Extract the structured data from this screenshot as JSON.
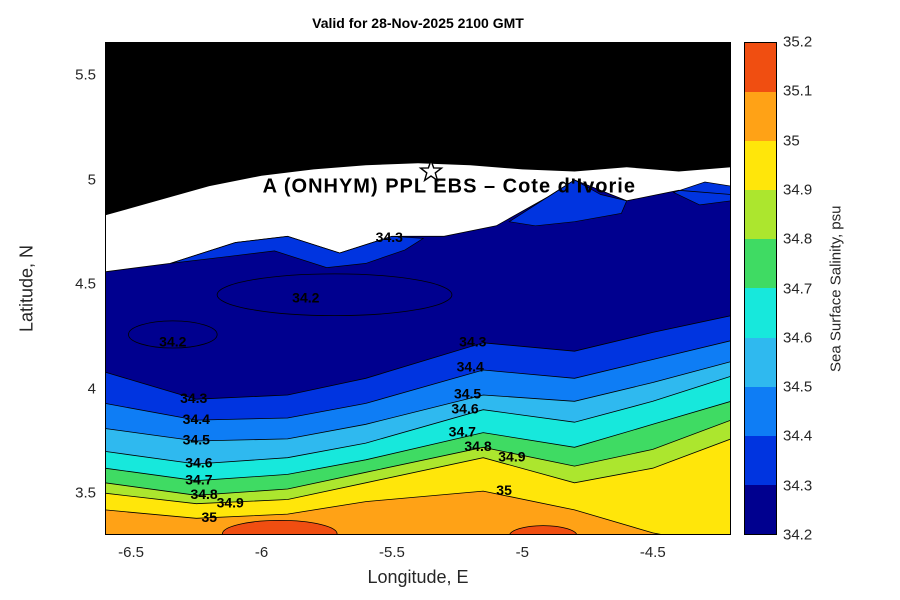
{
  "figure": {
    "title": "Valid for 28-Nov-2025 2100 GMT",
    "x_label": "Longitude, E",
    "y_label": "Latitude, N"
  },
  "colorbar": {
    "label": "Sea Surface Salinity, psu",
    "tick_labels": [
      "35.2",
      "35.1",
      "35",
      "34.9",
      "34.8",
      "34.7",
      "34.6",
      "34.5",
      "34.4",
      "34.3",
      "34.2"
    ],
    "segment_colors_top_to_bottom": [
      "#F04E11",
      "#FFA216",
      "#FFE60A",
      "#ACE62E",
      "#3FDB63",
      "#17E8DC",
      "#2FB9EF",
      "#0E7DF5",
      "#0034E0",
      "#00008F"
    ]
  },
  "annotation": {
    "text": "A (ONHYM) PPL EBS – Cote d'Ivorie",
    "lon": -5.28,
    "lat": 4.965
  },
  "star_marker": {
    "lon": -5.35,
    "lat": 5.04
  },
  "chart_data": {
    "type": "filled-contour",
    "title": "Valid for 28-Nov-2025 2100 GMT",
    "xlabel": "Longitude, E",
    "ylabel": "Latitude, N",
    "colorbar_label": "Sea Surface Salinity, psu",
    "xlim": [
      -6.6,
      -4.2
    ],
    "ylim": [
      3.3,
      5.66
    ],
    "x_tick_values": [
      -6.5,
      -6,
      -5.5,
      -5,
      -4.5
    ],
    "x_tick_labels": [
      "-6.5",
      "-6",
      "-5.5",
      "-5",
      "-4.5"
    ],
    "y_tick_values": [
      5.5,
      5,
      4.5,
      4,
      3.5
    ],
    "y_tick_labels": [
      "5.5",
      "5",
      "4.5",
      "4",
      "3.5"
    ],
    "levels": [
      34.2,
      34.3,
      34.4,
      34.5,
      34.6,
      34.7,
      34.8,
      34.9,
      35,
      35.1,
      35.2
    ],
    "band_colors_low_to_high": [
      "#00008F",
      "#0034E0",
      "#0E7DF5",
      "#2FB9EF",
      "#17E8DC",
      "#3FDB63",
      "#ACE62E",
      "#FFE60A",
      "#FFA216",
      "#F04E11"
    ],
    "x_stations": [
      -6.6,
      -6.25,
      -5.9,
      -5.6,
      -5.15,
      -4.8,
      -4.5,
      -4.2
    ],
    "contours": [
      {
        "level": "34.3",
        "lats": [
          4.08,
          3.95,
          3.97,
          4.05,
          4.22,
          4.18,
          4.27,
          4.35
        ]
      },
      {
        "level": "34.4",
        "lats": [
          3.93,
          3.85,
          3.86,
          3.93,
          4.09,
          4.05,
          4.14,
          4.23
        ]
      },
      {
        "level": "34.5",
        "lats": [
          3.81,
          3.75,
          3.76,
          3.83,
          3.97,
          3.94,
          4.03,
          4.13
        ]
      },
      {
        "level": "34.6",
        "lats": [
          3.7,
          3.64,
          3.67,
          3.74,
          3.9,
          3.84,
          3.94,
          4.06
        ]
      },
      {
        "level": "34.7",
        "lats": [
          3.62,
          3.56,
          3.59,
          3.66,
          3.79,
          3.72,
          3.83,
          3.94
        ]
      },
      {
        "level": "34.8",
        "lats": [
          3.55,
          3.49,
          3.52,
          3.6,
          3.72,
          3.63,
          3.71,
          3.85
        ]
      },
      {
        "level": "34.9",
        "lats": [
          3.5,
          3.45,
          3.47,
          3.55,
          3.67,
          3.55,
          3.62,
          3.76
        ]
      },
      {
        "level": "35",
        "lats": [
          3.42,
          3.38,
          3.4,
          3.46,
          3.51,
          3.42,
          3.31,
          3.24
        ]
      }
    ],
    "data_top_boundary": {
      "x": [
        -6.6,
        -6.35,
        -6.1,
        -5.9,
        -5.7,
        -5.5,
        -5.3,
        -5.1,
        -4.9,
        -4.8,
        -4.6,
        -4.4,
        -4.2
      ],
      "lats": [
        4.56,
        4.6,
        4.7,
        4.73,
        4.65,
        4.73,
        4.73,
        4.78,
        4.92,
        5.0,
        4.9,
        4.95,
        4.93
      ]
    },
    "coastline": {
      "x": [
        -6.6,
        -6.4,
        -6.2,
        -6.0,
        -5.8,
        -5.6,
        -5.4,
        -5.2,
        -5.0,
        -4.8,
        -4.6,
        -4.4,
        -4.2
      ],
      "lats": [
        4.83,
        4.9,
        4.97,
        5.02,
        5.05,
        5.07,
        5.08,
        5.07,
        5.05,
        5.04,
        5.06,
        5.04,
        5.06
      ]
    },
    "low_salinity_loops": [
      {
        "label": "34.2",
        "lon": -6.34,
        "lat": 4.26,
        "rx": 0.17,
        "ry": 0.065
      },
      {
        "label": "34.2",
        "lon": -5.72,
        "lat": 4.45,
        "rx": 0.45,
        "ry": 0.1
      }
    ],
    "high_salinity_patches": [
      {
        "level": "35.1",
        "lon": -5.93,
        "lat": 3.305,
        "rx": 0.22,
        "ry": 0.065
      },
      {
        "level": "35.1",
        "lon": -4.92,
        "lat": 3.295,
        "rx": 0.13,
        "ry": 0.05
      }
    ],
    "coastal_band_patches": [
      {
        "level": "34.3-34.4",
        "points": [
          [
            -6.35,
            4.6
          ],
          [
            -6.1,
            4.7
          ],
          [
            -5.9,
            4.73
          ],
          [
            -5.7,
            4.65
          ],
          [
            -5.5,
            4.73
          ],
          [
            -5.38,
            4.72
          ],
          [
            -5.45,
            4.665
          ],
          [
            -5.6,
            4.6
          ],
          [
            -5.75,
            4.58
          ],
          [
            -5.95,
            4.66
          ],
          [
            -6.15,
            4.63
          ]
        ]
      },
      {
        "level": "34.3-34.4",
        "points": [
          [
            -5.05,
            4.8
          ],
          [
            -4.9,
            4.92
          ],
          [
            -4.8,
            5.0
          ],
          [
            -4.7,
            4.93
          ],
          [
            -4.6,
            4.9
          ],
          [
            -4.62,
            4.84
          ],
          [
            -4.8,
            4.8
          ],
          [
            -4.95,
            4.78
          ]
        ]
      },
      {
        "level": "34.3-34.4",
        "points": [
          [
            -4.42,
            4.94
          ],
          [
            -4.3,
            4.99
          ],
          [
            -4.2,
            4.97
          ],
          [
            -4.2,
            4.9
          ],
          [
            -4.32,
            4.88
          ]
        ]
      }
    ],
    "contour_labels": [
      {
        "text": "34.3",
        "lon": -5.51,
        "lat": 4.72
      },
      {
        "text": "34.2",
        "lon": -5.83,
        "lat": 4.43
      },
      {
        "text": "34.2",
        "lon": -6.34,
        "lat": 4.22
      },
      {
        "text": "34.3",
        "lon": -5.19,
        "lat": 4.22
      },
      {
        "text": "34.4",
        "lon": -5.2,
        "lat": 4.1
      },
      {
        "text": "34.5",
        "lon": -5.21,
        "lat": 3.97
      },
      {
        "text": "34.6",
        "lon": -5.22,
        "lat": 3.9
      },
      {
        "text": "34.7",
        "lon": -5.23,
        "lat": 3.79
      },
      {
        "text": "34.8",
        "lon": -5.17,
        "lat": 3.72
      },
      {
        "text": "34.9",
        "lon": -5.04,
        "lat": 3.67
      },
      {
        "text": "35",
        "lon": -5.07,
        "lat": 3.51
      },
      {
        "text": "34.3",
        "lon": -6.26,
        "lat": 3.95
      },
      {
        "text": "34.4",
        "lon": -6.25,
        "lat": 3.85
      },
      {
        "text": "34.5",
        "lon": -6.25,
        "lat": 3.75
      },
      {
        "text": "34.6",
        "lon": -6.24,
        "lat": 3.64
      },
      {
        "text": "34.7",
        "lon": -6.24,
        "lat": 3.56
      },
      {
        "text": "34.8",
        "lon": -6.22,
        "lat": 3.49
      },
      {
        "text": "34.9",
        "lon": -6.12,
        "lat": 3.45
      },
      {
        "text": "35",
        "lon": -6.2,
        "lat": 3.38
      }
    ]
  }
}
